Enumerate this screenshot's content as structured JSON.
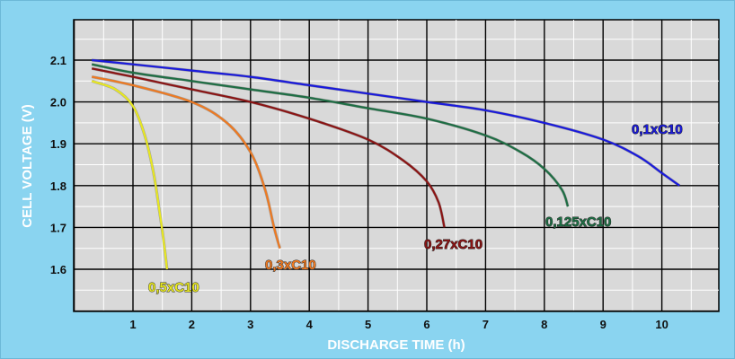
{
  "chart_data": {
    "type": "line",
    "xlabel": "DISCHARGE TIME (h)",
    "ylabel": "CELL VOLTAGE (V)",
    "xlim": [
      0,
      11
    ],
    "ylim": [
      1.5,
      2.2
    ],
    "xticks": [
      "1",
      "2",
      "3",
      "4",
      "5",
      "6",
      "7",
      "8",
      "9",
      "10"
    ],
    "yticks": [
      "1.6",
      "1.7",
      "1.8",
      "1.9",
      "2.0",
      "2.1"
    ],
    "grid": true,
    "background": "#8ad4f0",
    "plot_background": "#d9d9d9",
    "series": [
      {
        "name": "0,1xC10",
        "color": "#1a1adc",
        "points": [
          [
            0.3,
            2.1
          ],
          [
            1,
            2.09
          ],
          [
            2,
            2.075
          ],
          [
            3,
            2.06
          ],
          [
            4,
            2.04
          ],
          [
            5,
            2.02
          ],
          [
            6,
            2.0
          ],
          [
            7,
            1.98
          ],
          [
            8,
            1.95
          ],
          [
            9,
            1.91
          ],
          [
            9.6,
            1.87
          ],
          [
            10.0,
            1.83
          ],
          [
            10.3,
            1.8
          ]
        ]
      },
      {
        "name": "0,125xC10",
        "color": "#1e6e44",
        "points": [
          [
            0.3,
            2.09
          ],
          [
            1,
            2.07
          ],
          [
            2,
            2.05
          ],
          [
            3,
            2.03
          ],
          [
            4,
            2.01
          ],
          [
            5,
            1.985
          ],
          [
            6,
            1.96
          ],
          [
            7,
            1.92
          ],
          [
            7.6,
            1.88
          ],
          [
            8.0,
            1.84
          ],
          [
            8.3,
            1.79
          ],
          [
            8.4,
            1.75
          ]
        ]
      },
      {
        "name": "0,27xC10",
        "color": "#8b1414",
        "points": [
          [
            0.3,
            2.08
          ],
          [
            1,
            2.06
          ],
          [
            2,
            2.03
          ],
          [
            3,
            2.0
          ],
          [
            4,
            1.96
          ],
          [
            5,
            1.91
          ],
          [
            5.6,
            1.86
          ],
          [
            6.0,
            1.81
          ],
          [
            6.2,
            1.76
          ],
          [
            6.3,
            1.7
          ]
        ]
      },
      {
        "name": "0,3xC10",
        "color": "#ee7a22",
        "points": [
          [
            0.3,
            2.06
          ],
          [
            1,
            2.04
          ],
          [
            2,
            2.0
          ],
          [
            2.6,
            1.95
          ],
          [
            3.0,
            1.88
          ],
          [
            3.25,
            1.79
          ],
          [
            3.4,
            1.7
          ],
          [
            3.5,
            1.65
          ]
        ]
      },
      {
        "name": "0,5xC10",
        "color": "#e8e820",
        "points": [
          [
            0.3,
            2.05
          ],
          [
            0.7,
            2.03
          ],
          [
            1.0,
            1.99
          ],
          [
            1.2,
            1.92
          ],
          [
            1.35,
            1.83
          ],
          [
            1.45,
            1.74
          ],
          [
            1.52,
            1.67
          ],
          [
            1.58,
            1.6
          ]
        ]
      }
    ]
  }
}
